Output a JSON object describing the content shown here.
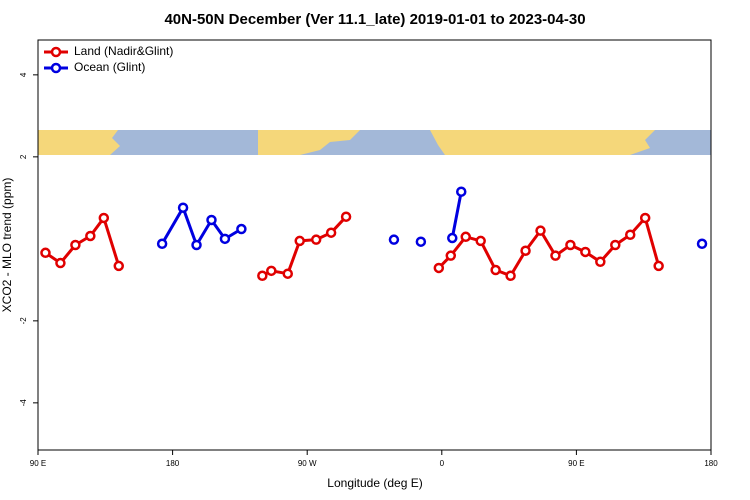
{
  "chart_data": {
    "type": "line",
    "title": "40N-50N December (Ver 11.1_late)   2019-01-01 to 2023-04-30",
    "xlabel": "Longitude (deg E)",
    "ylabel": "XCO2 - MLO trend (ppm)",
    "xlim": [
      90,
      540
    ],
    "ylim": [
      -5.15,
      4.85
    ],
    "xticks": [
      {
        "value": 90,
        "label": "90 E"
      },
      {
        "value": 180,
        "label": "180"
      },
      {
        "value": 270,
        "label": "90 W"
      },
      {
        "value": 360,
        "label": "0"
      },
      {
        "value": 450,
        "label": "90 E"
      },
      {
        "value": 540,
        "label": "180"
      }
    ],
    "yticks": [
      -4,
      -2,
      2,
      4
    ],
    "legend": "top-left",
    "series": [
      {
        "name": "Land (Nadir&Glint)",
        "color": "#e00000",
        "x": [
          95,
          105,
          115,
          125,
          134,
          144,
          null,
          240,
          246,
          257,
          265,
          276,
          286,
          296,
          null,
          358,
          366,
          376,
          386,
          396,
          406,
          416,
          426,
          436,
          446,
          456,
          466,
          476,
          486,
          496,
          505
        ],
        "values": [
          -0.34,
          -0.59,
          -0.15,
          0.07,
          0.51,
          -0.66,
          null,
          -0.9,
          -0.78,
          -0.85,
          -0.05,
          -0.02,
          0.15,
          0.54,
          null,
          -0.71,
          -0.41,
          0.05,
          -0.05,
          -0.76,
          -0.9,
          -0.29,
          0.2,
          -0.41,
          -0.15,
          -0.32,
          -0.56,
          -0.15,
          0.1,
          0.51,
          -0.66
        ]
      },
      {
        "name": "Ocean (Glint)",
        "color": "#0000e0",
        "x": [
          173,
          187,
          196,
          206,
          215,
          226,
          null,
          328,
          null,
          346,
          null,
          367,
          373,
          null,
          534
        ],
        "values": [
          -0.12,
          0.76,
          -0.15,
          0.46,
          0,
          0.24,
          null,
          -0.02,
          null,
          -0.07,
          null,
          0.02,
          1.15,
          null,
          -0.12
        ]
      }
    ]
  }
}
